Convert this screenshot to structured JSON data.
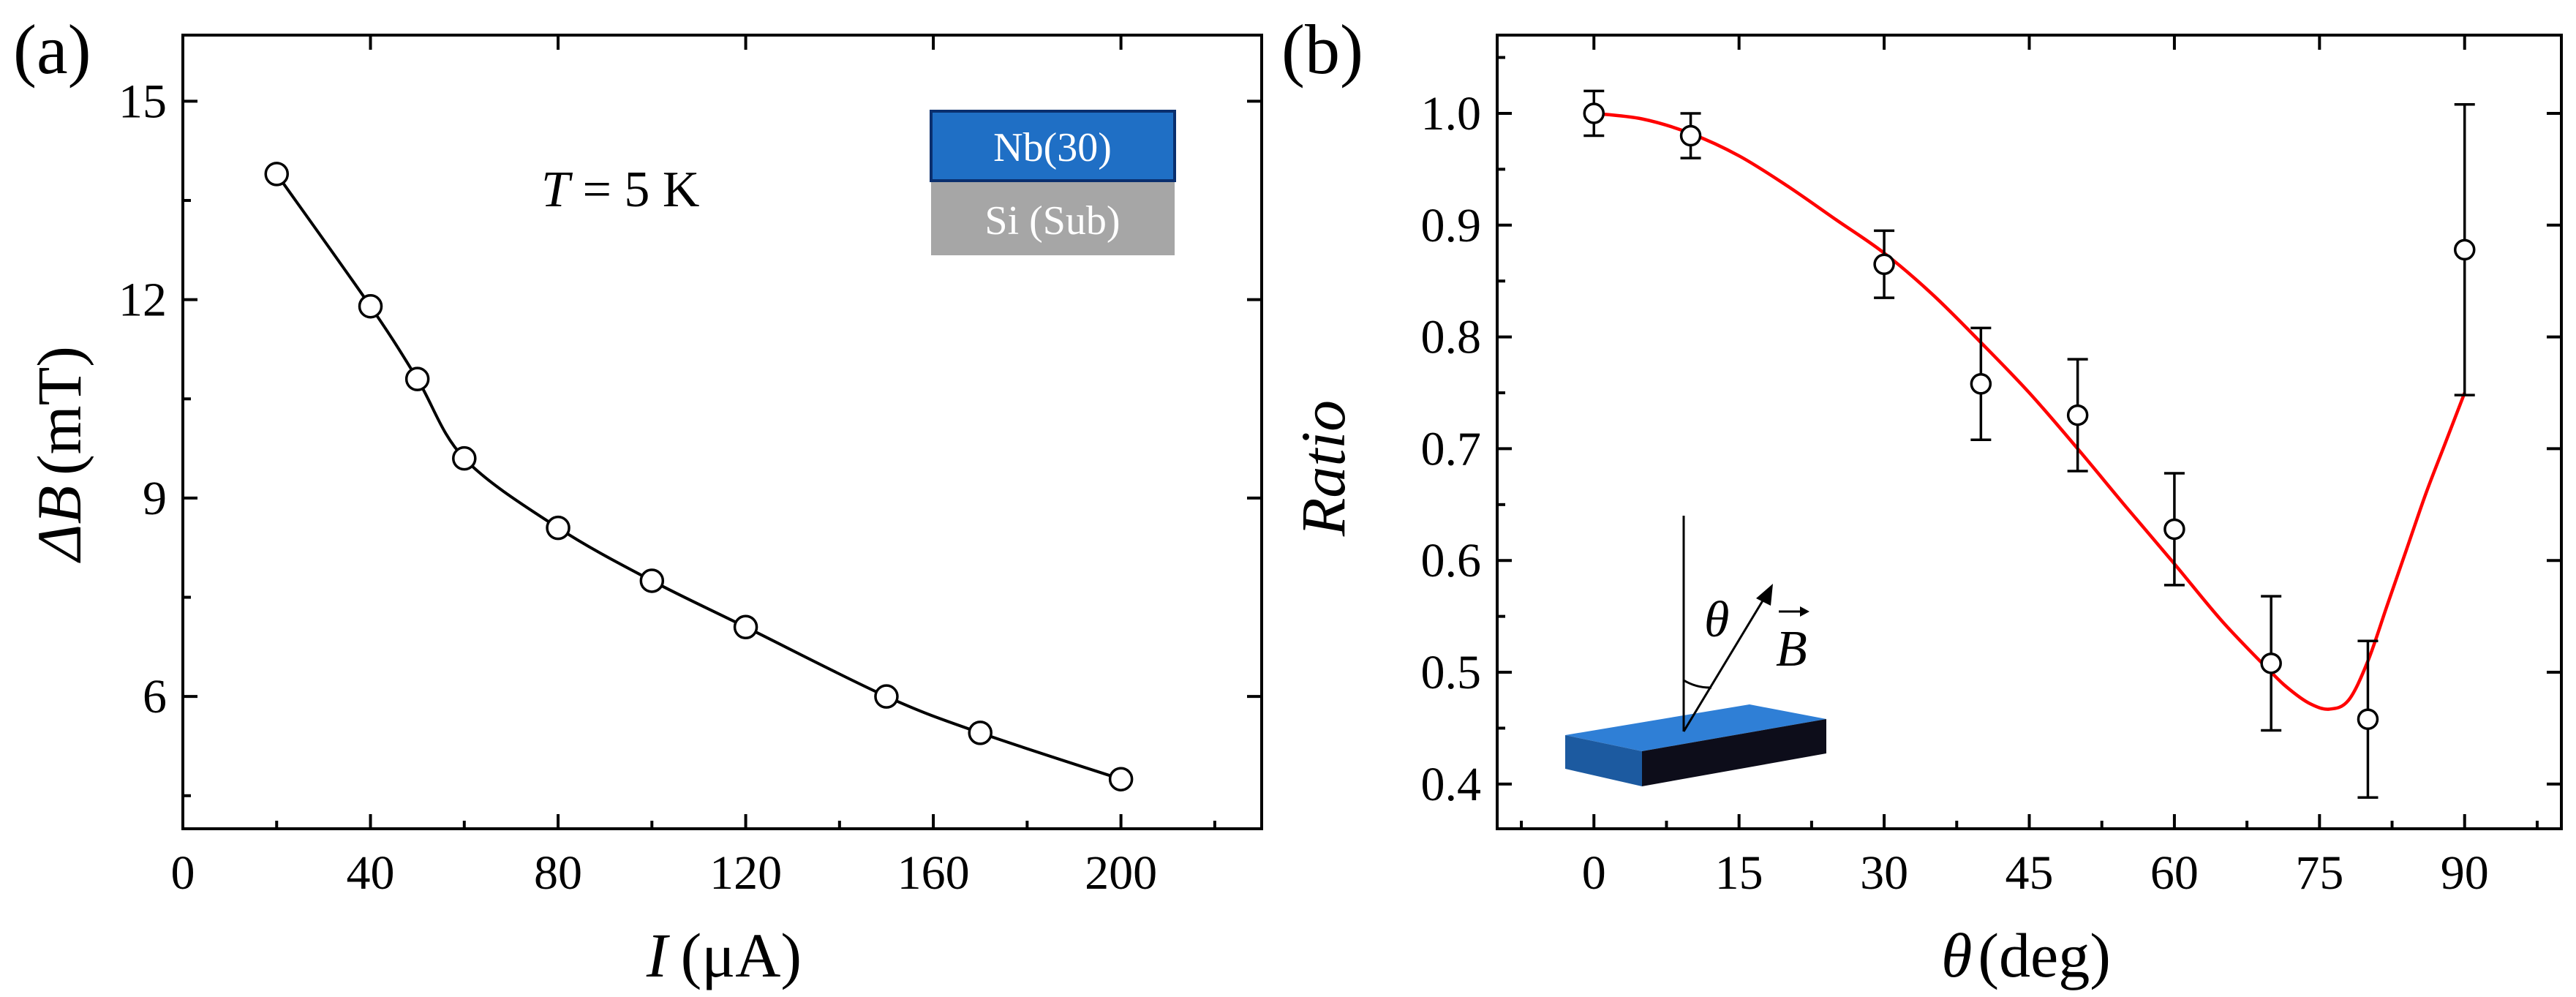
{
  "chart_data": [
    {
      "panel_label": "(a)",
      "type": "line",
      "x": [
        20,
        40,
        50,
        60,
        80,
        100,
        120,
        150,
        170,
        200
      ],
      "y": [
        13.9,
        11.9,
        10.8,
        9.6,
        8.55,
        7.75,
        7.05,
        6.0,
        5.45,
        4.75
      ],
      "xlim": [
        0,
        230
      ],
      "ylim": [
        4.0,
        16.0
      ],
      "xticks": [
        0,
        40,
        80,
        120,
        160,
        200
      ],
      "xtick_labels": [
        "0",
        "40",
        "80",
        "120",
        "160",
        "200"
      ],
      "yticks": [
        6,
        9,
        12,
        15
      ],
      "ytick_labels": [
        "6",
        "9",
        "12",
        "15"
      ],
      "xlabel": {
        "var": "I",
        "unit": "(μA)"
      },
      "ylabel": {
        "var": "ΔB",
        "unit": "(mT)"
      },
      "annotation": {
        "var": "T",
        "rest": " = 5 K"
      },
      "inset": {
        "top_layer": "Nb(30)",
        "bottom_layer": "Si (Sub)",
        "top_color": "#1f6fc5",
        "bottom_color": "#a6a6a6"
      },
      "marker": "open-circle",
      "line_color": "#000000"
    },
    {
      "panel_label": "(b)",
      "type": "scatter",
      "x": [
        0,
        10,
        30,
        40,
        50,
        60,
        70,
        80,
        90
      ],
      "y": [
        1.0,
        0.98,
        0.865,
        0.758,
        0.73,
        0.628,
        0.508,
        0.458,
        0.878
      ],
      "yerr": [
        0.02,
        0.02,
        0.03,
        0.05,
        0.05,
        0.05,
        0.06,
        0.07,
        0.13
      ],
      "fit": {
        "x": [
          0,
          5,
          10,
          15,
          20,
          25,
          30,
          35,
          40,
          45,
          50,
          55,
          60,
          65,
          70,
          72,
          74,
          76,
          78,
          80,
          82,
          84,
          86,
          88,
          90
        ],
        "y": [
          1.0,
          0.995,
          0.982,
          0.962,
          0.935,
          0.905,
          0.875,
          0.838,
          0.795,
          0.75,
          0.7,
          0.648,
          0.597,
          0.545,
          0.5,
          0.484,
          0.472,
          0.467,
          0.475,
          0.51,
          0.56,
          0.61,
          0.66,
          0.705,
          0.75
        ],
        "color": "#ff0000"
      },
      "xlim": [
        -10,
        100
      ],
      "ylim": [
        0.36,
        1.07
      ],
      "xticks": [
        0,
        15,
        30,
        45,
        60,
        75,
        90
      ],
      "xtick_labels": [
        "0",
        "15",
        "30",
        "45",
        "60",
        "75",
        "90"
      ],
      "yticks": [
        0.4,
        0.5,
        0.6,
        0.7,
        0.8,
        0.9,
        1.0
      ],
      "ytick_labels": [
        "0.4",
        "0.5",
        "0.6",
        "0.7",
        "0.8",
        "0.9",
        "1.0"
      ],
      "xlabel": {
        "var": "θ",
        "unit": "(deg)"
      },
      "ylabel": {
        "var": "Ratio"
      },
      "inset": {
        "angle_label": "θ",
        "field_label": "B",
        "slab_top": "#2f7fd6",
        "slab_front": "#1c5aa0",
        "slab_side": "#0d0d1a"
      },
      "marker": "open-circle"
    }
  ]
}
